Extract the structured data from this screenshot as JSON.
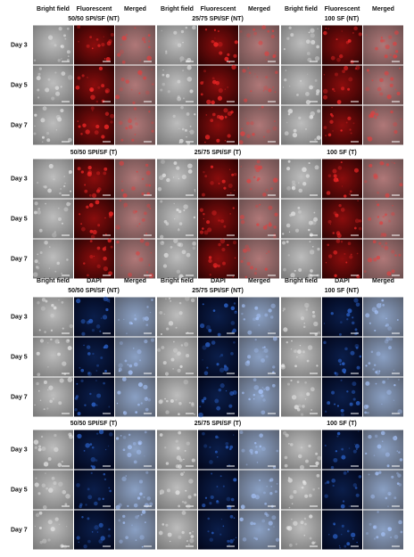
{
  "panels": [
    {
      "column_headers": [
        "Bright field",
        "Fluorescent",
        "Merged",
        "Bright field",
        "Fluorescent",
        "Merged",
        "Bright field",
        "Fluorescent",
        "Merged"
      ],
      "groups": [
        "50/50 SPI/SF (NT)",
        "25/75 SPI/SF (NT)",
        "100 SF (NT)"
      ],
      "rows": [
        "Day 3",
        "Day 5",
        "Day 7"
      ]
    },
    {
      "groups": [
        "50/50 SPI/SF (T)",
        "25/75 SPI/SF (T)",
        "100 SF (T)"
      ],
      "rows": [
        "Day 3",
        "Day 5",
        "Day 7"
      ]
    },
    {
      "column_headers": [
        "Bright field",
        "DAPI",
        "Merged",
        "Bright field",
        "DAPI",
        "Merged",
        "Bright field",
        "DAPI",
        "Merged"
      ],
      "groups": [
        "50/50 SPI/SF (NT)",
        "25/75 SPI/SF (NT)",
        "100 SF (NT)"
      ],
      "rows": [
        "Day 3",
        "Day 5",
        "Day 7"
      ]
    },
    {
      "groups": [
        "50/50 SPI/SF (T)",
        "25/75 SPI/SF (T)",
        "100 SF (T)"
      ],
      "rows": [
        "Day 3",
        "Day 5",
        "Day 7"
      ]
    }
  ]
}
